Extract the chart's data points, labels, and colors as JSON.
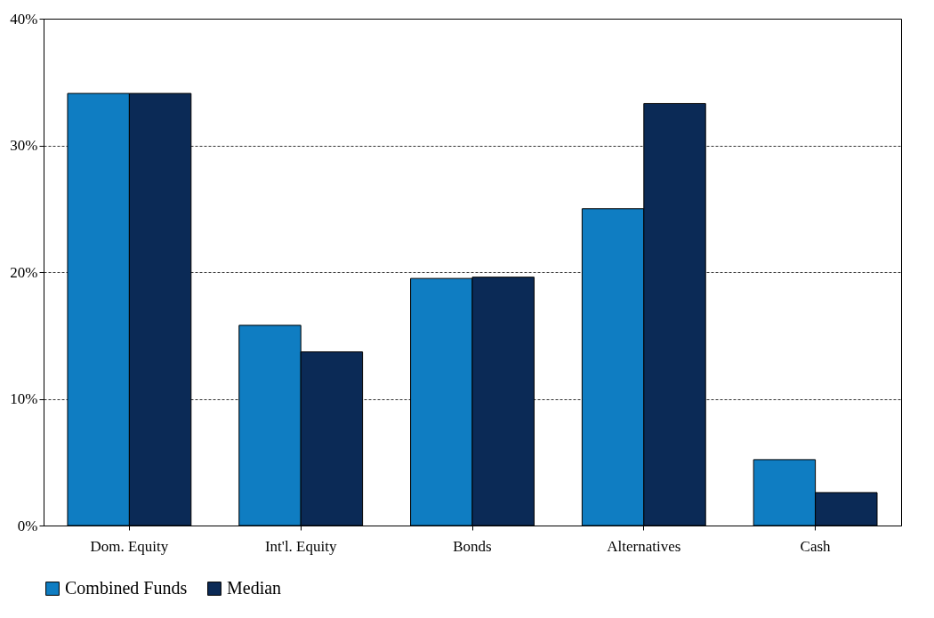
{
  "chart_data": {
    "type": "bar",
    "categories": [
      "Dom. Equity",
      "Int'l. Equity",
      "Bonds",
      "Alternatives",
      "Cash"
    ],
    "series": [
      {
        "name": "Combined Funds",
        "color": "#0f7dc2",
        "values": [
          34.1,
          15.8,
          19.5,
          25.0,
          5.2
        ]
      },
      {
        "name": "Median",
        "color": "#0b2a56",
        "values": [
          34.1,
          13.7,
          19.6,
          33.3,
          2.6
        ]
      }
    ],
    "ylim": [
      0,
      40
    ],
    "yticks": [
      {
        "value": 0,
        "label": "0%"
      },
      {
        "value": 10,
        "label": "10%"
      },
      {
        "value": 20,
        "label": "20%"
      },
      {
        "value": 30,
        "label": "30%"
      },
      {
        "value": 40,
        "label": "40%"
      }
    ],
    "grid": "y",
    "legend": "bottom"
  }
}
